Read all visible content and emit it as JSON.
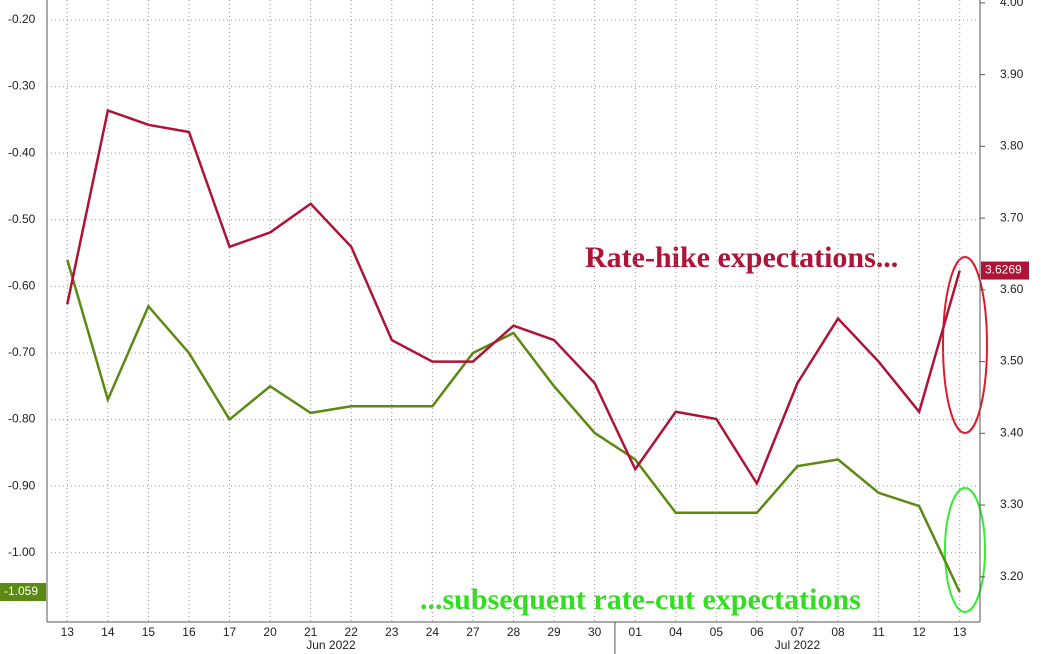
{
  "chart_data": {
    "type": "line",
    "categories": [
      "13",
      "14",
      "15",
      "16",
      "17",
      "20",
      "21",
      "22",
      "23",
      "24",
      "27",
      "28",
      "29",
      "30",
      "01",
      "04",
      "05",
      "06",
      "07",
      "08",
      "11",
      "12",
      "13"
    ],
    "months": [
      "Jun 2022",
      "Jul 2022"
    ],
    "series": [
      {
        "color": "#5b8a12",
        "values": [
          -0.56,
          -0.77,
          -0.63,
          -0.7,
          -0.8,
          -0.75,
          -0.79,
          -0.78,
          -0.78,
          -0.78,
          -0.7,
          -0.67,
          -0.75,
          -0.82,
          -0.86,
          -0.94,
          -0.94,
          -0.94,
          -0.87,
          -0.86,
          -0.91,
          -0.93,
          -1.059
        ]
      },
      {
        "color": "#b01338",
        "axis": "y2",
        "values": [
          3.58,
          3.85,
          3.83,
          3.82,
          3.66,
          3.68,
          3.72,
          3.66,
          3.53,
          3.5,
          3.5,
          3.55,
          3.53,
          3.47,
          3.35,
          3.43,
          3.42,
          3.33,
          3.47,
          3.56,
          3.5,
          3.43,
          3.6269
        ]
      }
    ],
    "ylim": [
      -1.104,
      -0.17
    ],
    "yticks": [
      {
        "value": -0.2,
        "label": "-0.20"
      },
      {
        "value": -0.3,
        "label": "-0.30"
      },
      {
        "value": -0.4,
        "label": "-0.40"
      },
      {
        "value": -0.5,
        "label": "-0.50"
      },
      {
        "value": -0.6,
        "label": "-0.60"
      },
      {
        "value": -0.7,
        "label": "-0.70"
      },
      {
        "value": -0.8,
        "label": "-0.80"
      },
      {
        "value": -0.9,
        "label": "-0.90"
      },
      {
        "value": -1.0,
        "label": "-1.00"
      }
    ],
    "y2lim": [
      3.137,
      4.004
    ],
    "y2ticks": [
      {
        "value": 3.2,
        "label": "3.20"
      },
      {
        "value": 3.3,
        "label": "3.30"
      },
      {
        "value": 3.4,
        "label": "3.40"
      },
      {
        "value": 3.5,
        "label": "3.50"
      },
      {
        "value": 3.6,
        "label": "3.60"
      },
      {
        "value": 3.7,
        "label": "3.70"
      },
      {
        "value": 3.8,
        "label": "3.80"
      },
      {
        "value": 3.9,
        "label": "3.90"
      },
      {
        "value": 4.0,
        "label": "4.00"
      }
    ],
    "grid": true,
    "annotations": [
      "Rate-hike expectations...",
      "...subsequent rate-cut expectations"
    ]
  }
}
